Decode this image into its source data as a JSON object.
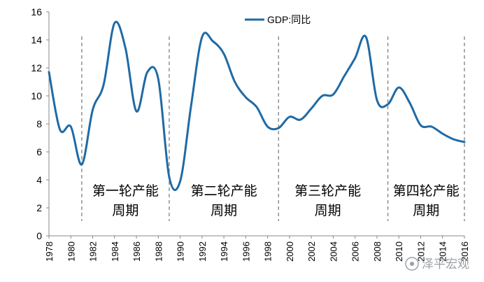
{
  "chart_data": {
    "type": "line",
    "title": "",
    "xlabel": "",
    "ylabel": "",
    "xlim": [
      1978,
      2016
    ],
    "ylim": [
      0,
      16
    ],
    "y_ticks": [
      0,
      2,
      4,
      6,
      8,
      10,
      12,
      14,
      16
    ],
    "x_ticks": [
      1978,
      1980,
      1982,
      1984,
      1986,
      1988,
      1990,
      1992,
      1994,
      1996,
      1998,
      2000,
      2002,
      2004,
      2006,
      2008,
      2010,
      2012,
      2014,
      2016
    ],
    "x_tick_labels": [
      "1978",
      "1980",
      "1982",
      "1984",
      "1986",
      "1988",
      "1990",
      "1992",
      "1994",
      "1996",
      "1998",
      "2000",
      "2002",
      "2004",
      "2006",
      "2008",
      "2010",
      "2012",
      "2014",
      "2016"
    ],
    "grid": false,
    "legend_position": "top-center",
    "series": [
      {
        "name": "GDP:同比",
        "color": "#1f6aa5",
        "x": [
          1978,
          1979,
          1980,
          1981,
          1982,
          1983,
          1984,
          1985,
          1986,
          1987,
          1988,
          1989,
          1990,
          1991,
          1992,
          1993,
          1994,
          1995,
          1996,
          1997,
          1998,
          1999,
          2000,
          2001,
          2002,
          2003,
          2004,
          2005,
          2006,
          2007,
          2008,
          2009,
          2010,
          2011,
          2012,
          2013,
          2014,
          2015,
          2016
        ],
        "values": [
          11.7,
          7.6,
          7.8,
          5.1,
          9.0,
          10.8,
          15.2,
          13.4,
          8.9,
          11.7,
          11.2,
          4.2,
          3.9,
          9.3,
          14.2,
          13.9,
          13.0,
          11.0,
          9.9,
          9.2,
          7.8,
          7.7,
          8.5,
          8.3,
          9.1,
          10.0,
          10.1,
          11.4,
          12.7,
          14.2,
          9.7,
          9.4,
          10.6,
          9.5,
          7.9,
          7.8,
          7.3,
          6.9,
          6.7
        ]
      }
    ],
    "dividers": [
      1981,
      1989,
      1999,
      2009,
      2016
    ],
    "period_labels": [
      {
        "line1": "第一轮产能",
        "line2": "周期",
        "x_center": 1985
      },
      {
        "line1": "第二轮产能",
        "line2": "周期",
        "x_center": 1994
      },
      {
        "line1": "第三轮产能",
        "line2": "周期",
        "x_center": 2003.5
      },
      {
        "line1": "第四轮产能",
        "line2": "周期",
        "x_center": 2012.5
      }
    ]
  },
  "watermark": "泽平宏观"
}
